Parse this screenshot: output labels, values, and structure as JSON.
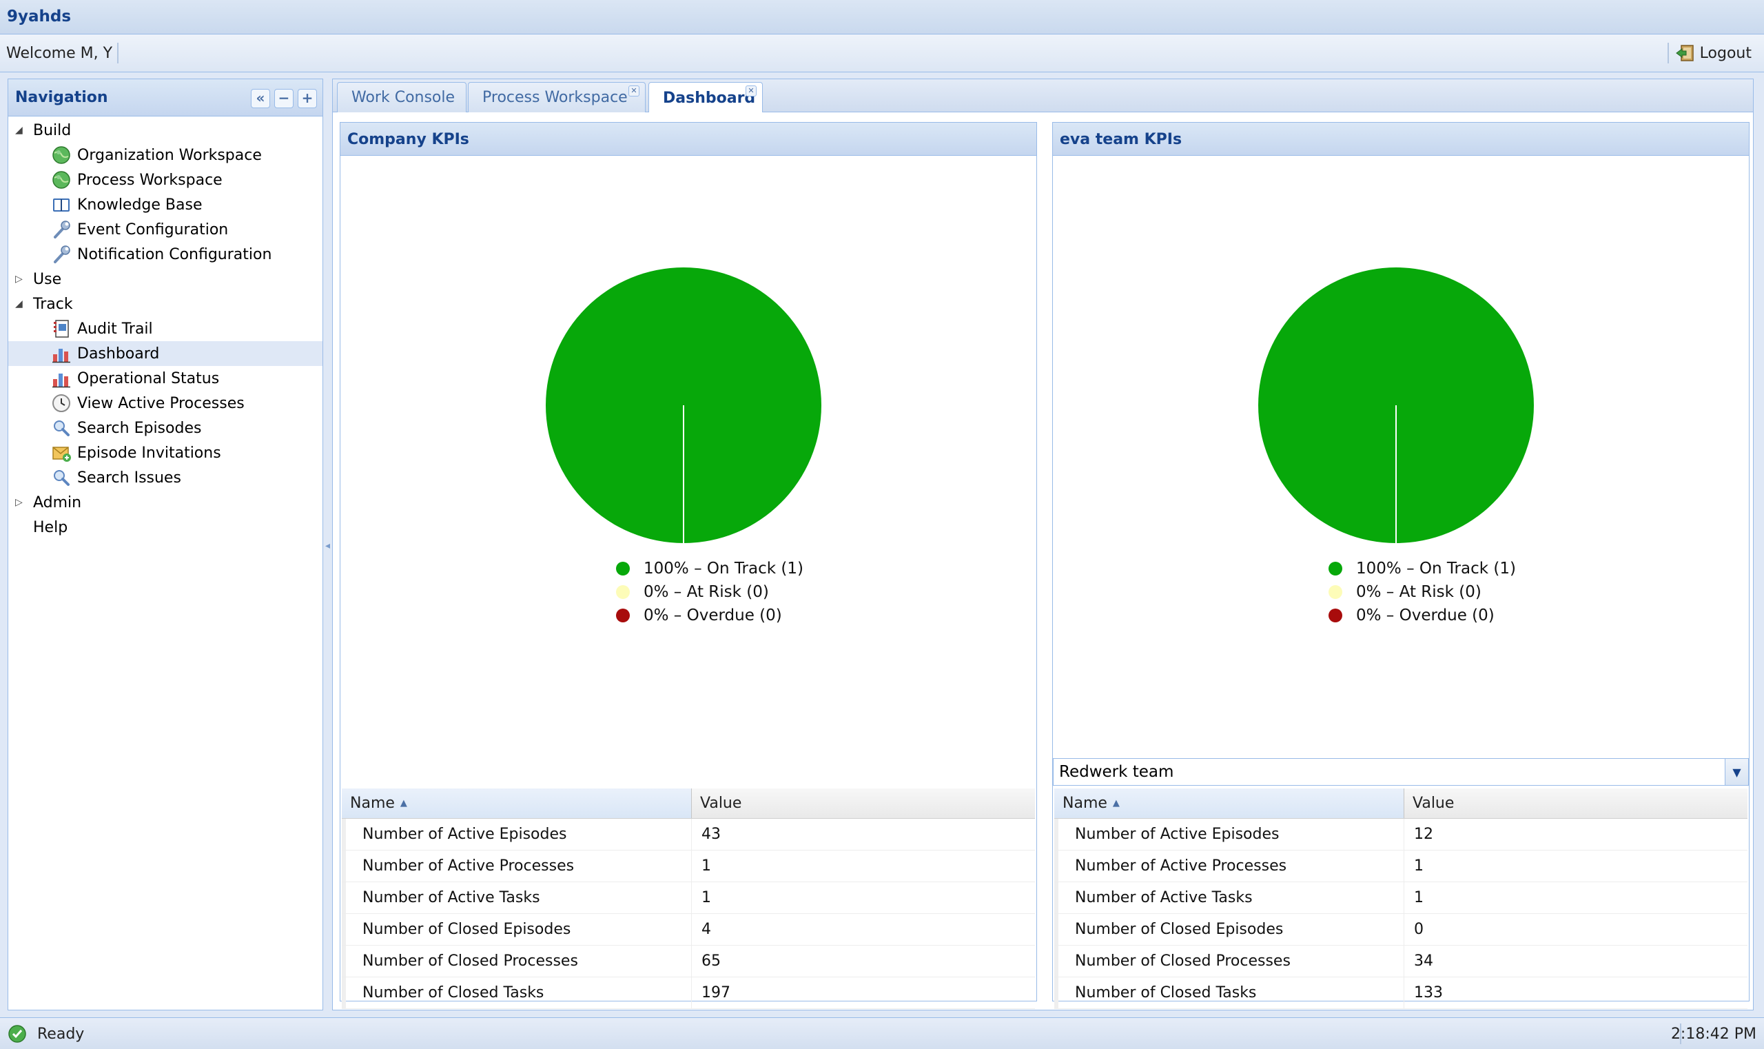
{
  "app": {
    "title": "9yahds"
  },
  "welcome": {
    "text": "Welcome M, Y",
    "logout_label": "Logout"
  },
  "nav": {
    "title": "Navigation",
    "tools": [
      "«",
      "−",
      "+"
    ],
    "tree": [
      {
        "label": "Build",
        "level": 0,
        "expanded": true
      },
      {
        "label": "Organization Workspace",
        "level": 1,
        "icon": "globe-icon"
      },
      {
        "label": "Process Workspace",
        "level": 1,
        "icon": "globe-icon"
      },
      {
        "label": "Knowledge Base",
        "level": 1,
        "icon": "book-icon"
      },
      {
        "label": "Event Configuration",
        "level": 1,
        "icon": "wrench-icon"
      },
      {
        "label": "Notification Configuration",
        "level": 1,
        "icon": "wrench-icon"
      },
      {
        "label": "Use",
        "level": 0,
        "expanded": false
      },
      {
        "label": "Track",
        "level": 0,
        "expanded": true
      },
      {
        "label": "Audit Trail",
        "level": 1,
        "icon": "notebook-icon"
      },
      {
        "label": "Dashboard",
        "level": 1,
        "icon": "bar-chart-icon",
        "selected": true
      },
      {
        "label": "Operational Status",
        "level": 1,
        "icon": "bar-chart-icon"
      },
      {
        "label": "View Active Processes",
        "level": 1,
        "icon": "clock-icon"
      },
      {
        "label": "Search Episodes",
        "level": 1,
        "icon": "magnifier-icon"
      },
      {
        "label": "Episode Invitations",
        "level": 1,
        "icon": "invitation-icon"
      },
      {
        "label": "Search Issues",
        "level": 1,
        "icon": "magnifier-icon"
      },
      {
        "label": "Admin",
        "level": 0,
        "expanded": false
      },
      {
        "label": "Help",
        "level": 0,
        "leaf": true
      }
    ]
  },
  "tabs": [
    {
      "label": "Work Console",
      "closable": false,
      "active": false
    },
    {
      "label": "Process Workspace",
      "closable": true,
      "active": false
    },
    {
      "label": "Dashboard",
      "closable": true,
      "active": true
    }
  ],
  "company_kpis": {
    "title": "Company KPIs",
    "legend": [
      "100% – On Track (1)",
      "0% – At Risk (0)",
      "0% – Overdue (0)"
    ],
    "grid": {
      "col_name": "Name",
      "col_value": "Value",
      "rows": [
        {
          "name": "Number of Active Episodes",
          "value": "43"
        },
        {
          "name": "Number of Active Processes",
          "value": "1"
        },
        {
          "name": "Number of Active Tasks",
          "value": "1"
        },
        {
          "name": "Number of Closed Episodes",
          "value": "4"
        },
        {
          "name": "Number of Closed Processes",
          "value": "65"
        },
        {
          "name": "Number of Closed Tasks",
          "value": "197"
        }
      ]
    }
  },
  "team_kpis": {
    "title": "eva team KPIs",
    "legend": [
      "100% – On Track (1)",
      "0% – At Risk (0)",
      "0% – Overdue (0)"
    ],
    "team_select": "Redwerk team",
    "grid": {
      "col_name": "Name",
      "col_value": "Value",
      "rows": [
        {
          "name": "Number of Active Episodes",
          "value": "12"
        },
        {
          "name": "Number of Active Processes",
          "value": "1"
        },
        {
          "name": "Number of Active Tasks",
          "value": "1"
        },
        {
          "name": "Number of Closed Episodes",
          "value": "0"
        },
        {
          "name": "Number of Closed Processes",
          "value": "34"
        },
        {
          "name": "Number of Closed Tasks",
          "value": "133"
        }
      ]
    }
  },
  "chart_data": [
    {
      "type": "pie",
      "categories": [
        "On Track",
        "At Risk",
        "Overdue"
      ],
      "values": [
        1,
        0,
        0
      ],
      "colors": [
        "#07a80a",
        "#fdfcb8",
        "#a80c0c"
      ]
    },
    {
      "type": "pie",
      "categories": [
        "On Track",
        "At Risk",
        "Overdue"
      ],
      "values": [
        1,
        0,
        0
      ],
      "colors": [
        "#07a80a",
        "#fdfcb8",
        "#a80c0c"
      ]
    }
  ],
  "status": {
    "text": "Ready",
    "clock": "2:18:42 PM"
  }
}
